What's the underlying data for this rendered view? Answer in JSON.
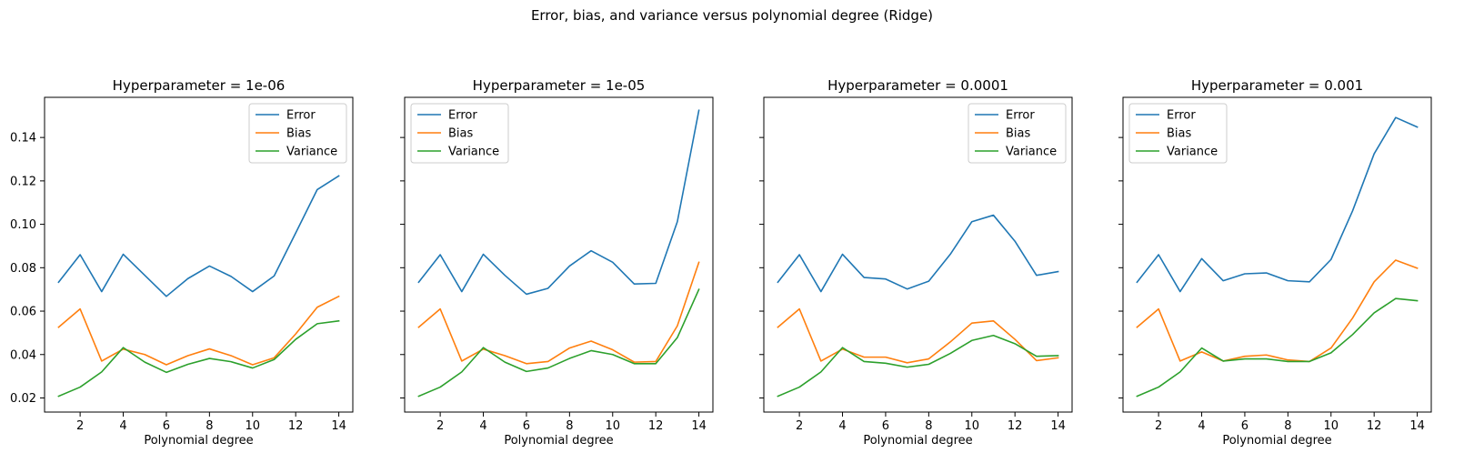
{
  "figure": {
    "suptitle": "Error, bias, and variance versus polynomial degree (Ridge)"
  },
  "chart_data": [
    {
      "type": "line",
      "title": "Hyperparameter = 1e-06",
      "xlabel": "Polynomial degree",
      "ylabel": "",
      "x": [
        1,
        2,
        3,
        4,
        5,
        6,
        7,
        8,
        9,
        10,
        11,
        12,
        13,
        14
      ],
      "xticks": [
        2,
        4,
        6,
        8,
        10,
        12,
        14
      ],
      "yticks": [
        0.02,
        0.04,
        0.06,
        0.08,
        0.1,
        0.12,
        0.14
      ],
      "yticklabels": [
        "0.02",
        "0.04",
        "0.06",
        "0.08",
        "0.10",
        "0.12",
        "0.14"
      ],
      "xlim": [
        0.35,
        14.65
      ],
      "ylim": [
        0.0135,
        0.1585
      ],
      "legend": "upper right",
      "series": [
        {
          "name": "Error",
          "color": "#1f77b4",
          "values": [
            0.0733,
            0.086,
            0.069,
            0.0862,
            0.0765,
            0.0668,
            0.075,
            0.0808,
            0.076,
            0.069,
            0.0762,
            0.096,
            0.116,
            0.1223
          ]
        },
        {
          "name": "Bias",
          "color": "#ff7f0e",
          "values": [
            0.0526,
            0.061,
            0.037,
            0.0425,
            0.04,
            0.0353,
            0.0395,
            0.0426,
            0.0395,
            0.0353,
            0.0385,
            0.0495,
            0.0618,
            0.0668
          ]
        },
        {
          "name": "Variance",
          "color": "#2ca02c",
          "values": [
            0.0208,
            0.025,
            0.032,
            0.0432,
            0.0365,
            0.0318,
            0.0355,
            0.0382,
            0.0367,
            0.0338,
            0.0377,
            0.047,
            0.0542,
            0.0555
          ]
        }
      ]
    },
    {
      "type": "line",
      "title": "Hyperparameter = 1e-05",
      "xlabel": "Polynomial degree",
      "ylabel": "",
      "x": [
        1,
        2,
        3,
        4,
        5,
        6,
        7,
        8,
        9,
        10,
        11,
        12,
        13,
        14
      ],
      "xticks": [
        2,
        4,
        6,
        8,
        10,
        12,
        14
      ],
      "yticks": [
        0.02,
        0.04,
        0.06,
        0.08,
        0.1,
        0.12,
        0.14
      ],
      "yticklabels": [],
      "xlim": [
        0.35,
        14.65
      ],
      "ylim": [
        0.0135,
        0.1585
      ],
      "legend": "upper left",
      "series": [
        {
          "name": "Error",
          "color": "#1f77b4",
          "values": [
            0.0733,
            0.086,
            0.069,
            0.0862,
            0.0765,
            0.0678,
            0.0705,
            0.0808,
            0.0878,
            0.0825,
            0.0725,
            0.0728,
            0.1012,
            0.1525
          ]
        },
        {
          "name": "Bias",
          "color": "#ff7f0e",
          "values": [
            0.0526,
            0.061,
            0.037,
            0.0425,
            0.0395,
            0.0358,
            0.0368,
            0.043,
            0.0462,
            0.0422,
            0.0365,
            0.0368,
            0.0532,
            0.0825
          ]
        },
        {
          "name": "Variance",
          "color": "#2ca02c",
          "values": [
            0.0208,
            0.025,
            0.032,
            0.0432,
            0.0365,
            0.0322,
            0.0338,
            0.0382,
            0.0418,
            0.04,
            0.0358,
            0.0358,
            0.0478,
            0.07
          ]
        }
      ]
    },
    {
      "type": "line",
      "title": "Hyperparameter = 0.0001",
      "xlabel": "Polynomial degree",
      "ylabel": "",
      "x": [
        1,
        2,
        3,
        4,
        5,
        6,
        7,
        8,
        9,
        10,
        11,
        12,
        13,
        14
      ],
      "xticks": [
        2,
        4,
        6,
        8,
        10,
        12,
        14
      ],
      "yticks": [
        0.02,
        0.04,
        0.06,
        0.08,
        0.1,
        0.12,
        0.14
      ],
      "yticklabels": [],
      "xlim": [
        0.35,
        14.65
      ],
      "ylim": [
        0.0135,
        0.1585
      ],
      "legend": "upper right",
      "series": [
        {
          "name": "Error",
          "color": "#1f77b4",
          "values": [
            0.0733,
            0.086,
            0.069,
            0.0862,
            0.0755,
            0.0748,
            0.0702,
            0.0738,
            0.0862,
            0.1012,
            0.1042,
            0.0922,
            0.0765,
            0.0782
          ]
        },
        {
          "name": "Bias",
          "color": "#ff7f0e",
          "values": [
            0.0526,
            0.061,
            0.037,
            0.0425,
            0.0388,
            0.0388,
            0.0362,
            0.038,
            0.0458,
            0.0545,
            0.0555,
            0.047,
            0.0372,
            0.0385
          ]
        },
        {
          "name": "Variance",
          "color": "#2ca02c",
          "values": [
            0.0208,
            0.025,
            0.032,
            0.0432,
            0.0368,
            0.036,
            0.0342,
            0.0355,
            0.0405,
            0.0465,
            0.0488,
            0.045,
            0.0392,
            0.0395
          ]
        }
      ]
    },
    {
      "type": "line",
      "title": "Hyperparameter = 0.001",
      "xlabel": "Polynomial degree",
      "ylabel": "",
      "x": [
        1,
        2,
        3,
        4,
        5,
        6,
        7,
        8,
        9,
        10,
        11,
        12,
        13,
        14
      ],
      "xticks": [
        2,
        4,
        6,
        8,
        10,
        12,
        14
      ],
      "yticks": [
        0.02,
        0.04,
        0.06,
        0.08,
        0.1,
        0.12,
        0.14
      ],
      "yticklabels": [],
      "xlim": [
        0.35,
        14.65
      ],
      "ylim": [
        0.0135,
        0.1585
      ],
      "legend": "upper left",
      "series": [
        {
          "name": "Error",
          "color": "#1f77b4",
          "values": [
            0.0733,
            0.086,
            0.069,
            0.0842,
            0.074,
            0.0772,
            0.0776,
            0.074,
            0.0735,
            0.0838,
            0.1062,
            0.1325,
            0.1492,
            0.1448
          ]
        },
        {
          "name": "Bias",
          "color": "#ff7f0e",
          "values": [
            0.0526,
            0.061,
            0.037,
            0.0412,
            0.037,
            0.0392,
            0.0398,
            0.0375,
            0.0368,
            0.043,
            0.0568,
            0.0735,
            0.0835,
            0.0798
          ]
        },
        {
          "name": "Variance",
          "color": "#2ca02c",
          "values": [
            0.0208,
            0.025,
            0.032,
            0.043,
            0.037,
            0.038,
            0.038,
            0.0368,
            0.0368,
            0.0408,
            0.0492,
            0.0592,
            0.0658,
            0.0648
          ]
        }
      ]
    }
  ]
}
